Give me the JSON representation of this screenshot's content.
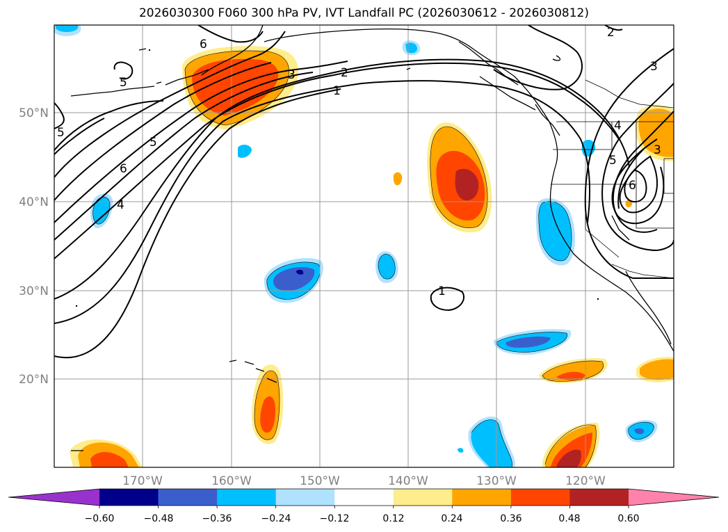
{
  "title": "2026030300 F060 300 hPa PV, IVT Landfall PC (2026030612 - 2026030812)",
  "longitude_labels": [
    "170°W",
    "160°W",
    "150°W",
    "140°W",
    "130°W",
    "120°W"
  ],
  "latitude_labels": [
    "50°N",
    "40°N",
    "30°N",
    "20°N"
  ],
  "contour_labels": [
    "6",
    "5",
    "3",
    "2",
    "1",
    "2",
    "3",
    "5",
    "4",
    "6",
    "5",
    "4",
    "5",
    "6",
    "1",
    "3"
  ],
  "colorbar": {
    "tick_labels": [
      "−0.60",
      "−0.48",
      "−0.36",
      "−0.24",
      "−0.12",
      "0.12",
      "0.24",
      "0.36",
      "0.48",
      "0.60"
    ],
    "segment_colors": [
      "#9932cc",
      "#00008b",
      "#3a5fcd",
      "#00bfff",
      "#b0e2ff",
      "#ffffff",
      "#ffec8b",
      "#ffa500",
      "#ff4500",
      "#b22222",
      "#ff82ab"
    ]
  }
}
